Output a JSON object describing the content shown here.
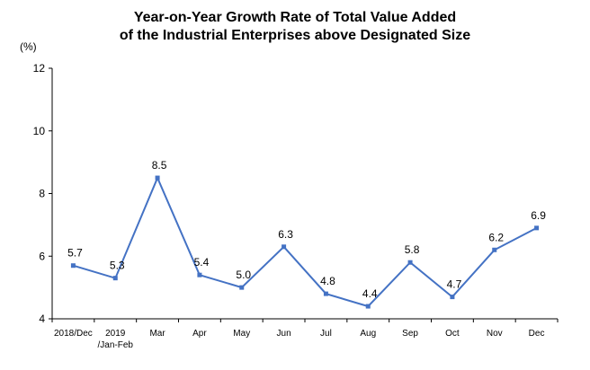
{
  "chart_data": {
    "type": "line",
    "title": "Year-on-Year Growth Rate of Total Value Added",
    "subtitle": "of the Industrial Enterprises above Designated Size",
    "ylabel": "(%)",
    "xlabel": "",
    "ylim": [
      4,
      12
    ],
    "yticks": [
      "4",
      "6",
      "8",
      "10",
      "12"
    ],
    "grid": false,
    "legend": "none",
    "line_color": "#4472C4",
    "categories": [
      [
        "2018/Dec"
      ],
      [
        "2019",
        "/Jan-Feb"
      ],
      [
        "Mar"
      ],
      [
        "Apr"
      ],
      [
        "May"
      ],
      [
        "Jun"
      ],
      [
        "Jul"
      ],
      [
        "Aug"
      ],
      [
        "Sep"
      ],
      [
        "Oct"
      ],
      [
        "Nov"
      ],
      [
        "Dec"
      ]
    ],
    "values": [
      5.7,
      5.3,
      8.5,
      5.4,
      5.0,
      6.3,
      4.8,
      4.4,
      5.8,
      4.7,
      6.2,
      6.9
    ],
    "data_labels": [
      "5.7",
      "5.3",
      "8.5",
      "5.4",
      "5.0",
      "6.3",
      "4.8",
      "4.4",
      "5.8",
      "4.7",
      "6.2",
      "6.9"
    ]
  }
}
